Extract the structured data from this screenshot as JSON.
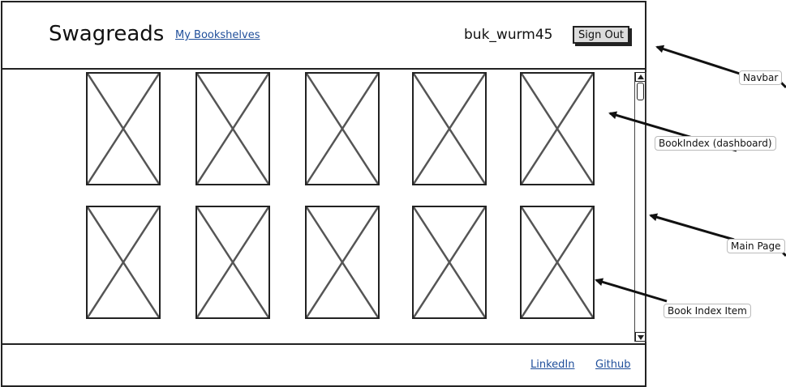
{
  "navbar": {
    "brand": "Swagreads",
    "my_bookshelves_link": "My Bookshelves",
    "username": "buk_wurm45",
    "signout_label": "Sign Out"
  },
  "book_index": {
    "items": [
      {
        "kind": "image-placeholder"
      },
      {
        "kind": "image-placeholder"
      },
      {
        "kind": "image-placeholder"
      },
      {
        "kind": "image-placeholder"
      },
      {
        "kind": "image-placeholder"
      },
      {
        "kind": "image-placeholder"
      },
      {
        "kind": "image-placeholder"
      },
      {
        "kind": "image-placeholder"
      },
      {
        "kind": "image-placeholder"
      },
      {
        "kind": "image-placeholder"
      }
    ]
  },
  "footer": {
    "linkedin_label": "LinkedIn",
    "github_label": "Github"
  },
  "annotations": {
    "navbar": "Navbar",
    "book_index": "BookIndex (dashboard)",
    "main_page": "Main Page",
    "book_index_item": "Book Index Item"
  }
}
